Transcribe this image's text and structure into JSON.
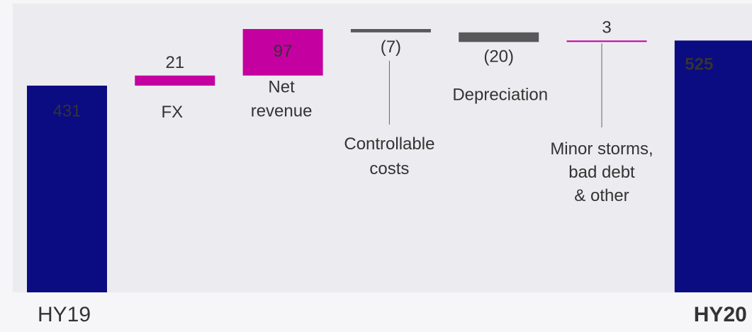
{
  "chart_data": {
    "type": "waterfall",
    "categories": [
      "HY19",
      "FX",
      "Net\nrevenue",
      "Controllable\ncosts",
      "Depreciation",
      "Minor storms,\nbad debt\n& other",
      "HY20"
    ],
    "values": [
      431,
      21,
      97,
      -7,
      -20,
      3,
      525
    ],
    "value_labels": [
      "431",
      "21",
      "97",
      "(7)",
      "(20)",
      "3",
      "525"
    ],
    "total": [
      true,
      false,
      false,
      false,
      false,
      false,
      true
    ],
    "colors": {
      "total": "#0b0b82",
      "increase": "#c400a0",
      "decrease": "#58585a"
    }
  }
}
